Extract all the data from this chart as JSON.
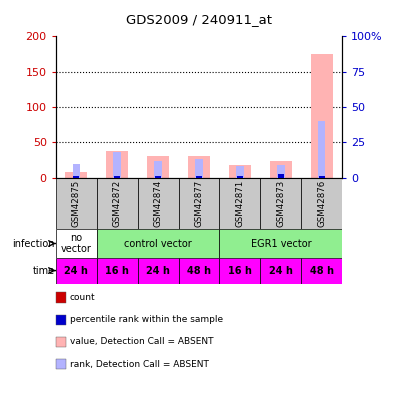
{
  "title": "GDS2009 / 240911_at",
  "samples": [
    "GSM42875",
    "GSM42872",
    "GSM42874",
    "GSM42877",
    "GSM42871",
    "GSM42873",
    "GSM42876"
  ],
  "pink_bars": [
    8,
    38,
    30,
    30,
    18,
    23,
    175
  ],
  "blue_bars_pct": [
    10,
    18,
    12,
    13,
    8,
    9,
    40
  ],
  "red_bars": [
    7,
    5,
    5,
    5,
    5,
    8,
    5
  ],
  "dark_blue_bars_pct": [
    1.5,
    1.5,
    1.5,
    1.5,
    1.5,
    2.5,
    1.5
  ],
  "time_labels": [
    "24 h",
    "16 h",
    "24 h",
    "48 h",
    "16 h",
    "24 h",
    "48 h"
  ],
  "time_color": "#FF00FF",
  "ylim_left": [
    0,
    200
  ],
  "ylim_right": [
    0,
    100
  ],
  "yticks_left": [
    0,
    50,
    100,
    150,
    200
  ],
  "yticks_right": [
    0,
    25,
    50,
    75,
    100
  ],
  "yticklabels_right": [
    "0",
    "25",
    "50",
    "75",
    "100%"
  ],
  "legend_items": [
    {
      "color": "#cc0000",
      "label": "count"
    },
    {
      "color": "#0000cc",
      "label": "percentile rank within the sample"
    },
    {
      "color": "#ffb3b3",
      "label": "value, Detection Call = ABSENT"
    },
    {
      "color": "#b3b3ff",
      "label": "rank, Detection Call = ABSENT"
    }
  ],
  "left_ycolor": "#cc0000",
  "right_ycolor": "#0000cc",
  "sample_bg": "#c8c8c8",
  "no_vector_color": "#ffffff",
  "control_color": "#90EE90",
  "egr1_color": "#90EE90",
  "time_text_color": "#000000"
}
